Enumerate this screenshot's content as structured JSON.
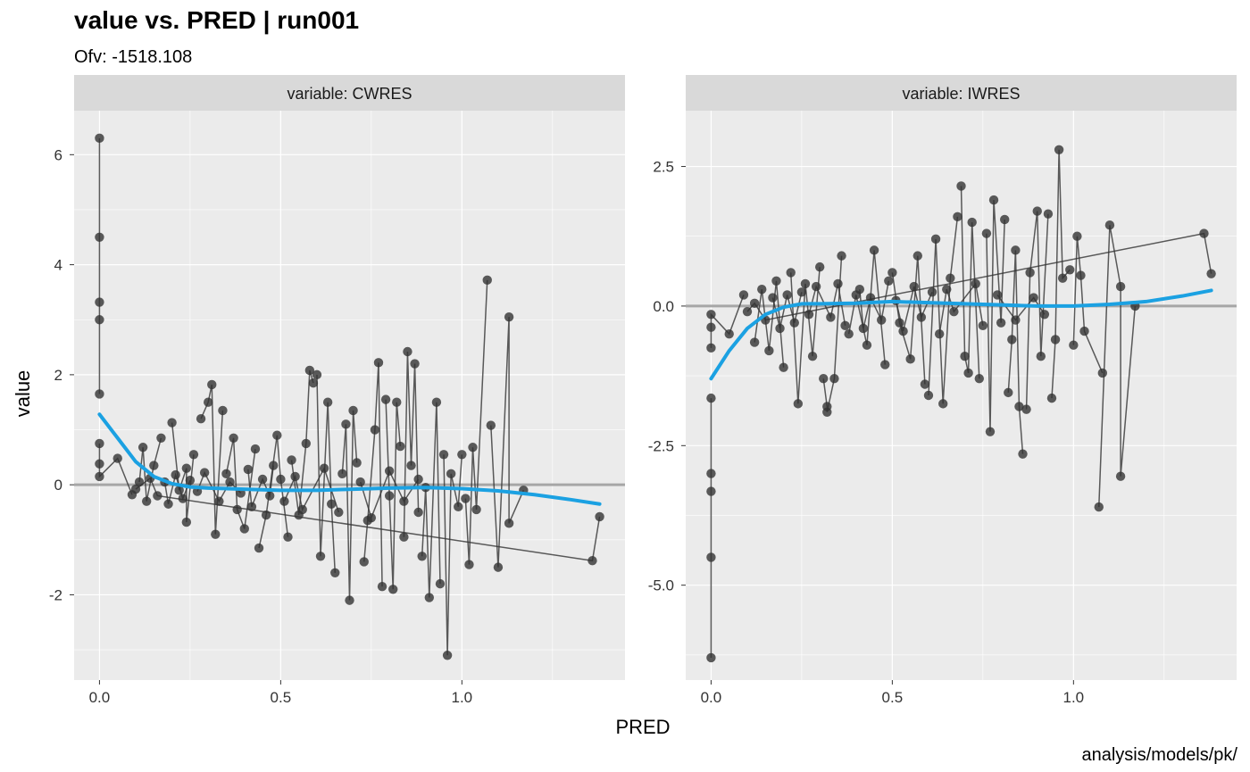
{
  "title": "value vs. PRED | run001",
  "subtitle": "Ofv: -1518.108",
  "caption": "analysis/models/pk/",
  "colors": {
    "panel_bg": "#ebebeb",
    "strip_bg": "#d9d9d9",
    "grid": "#ffffff",
    "points": "#333333",
    "lines": "#333333",
    "smooth": "#1ba1e2",
    "reference": "#a6a6a6"
  },
  "chart_data": [
    {
      "type": "scatter",
      "facet": "variable: CWRES",
      "xlabel": "PRED",
      "ylabel": "value",
      "xlim": [
        -0.07,
        1.45
      ],
      "ylim": [
        -3.55,
        6.8
      ],
      "xticks": [
        "0.0",
        "0.5",
        "1.0"
      ],
      "xtick_values": [
        0,
        0.5,
        1.0
      ],
      "yticks": [
        "-2",
        "0",
        "2",
        "4",
        "6"
      ],
      "ytick_values": [
        -2,
        0,
        2,
        4,
        6
      ],
      "reference_line": 0,
      "grid": true,
      "points": [
        [
          0.0,
          6.3
        ],
        [
          0.0,
          4.5
        ],
        [
          0.0,
          3.32
        ],
        [
          0.0,
          3.0
        ],
        [
          0.0,
          1.65
        ],
        [
          0.0,
          0.75
        ],
        [
          0.0,
          0.38
        ],
        [
          0.0,
          0.15
        ],
        [
          0.05,
          0.48
        ],
        [
          0.09,
          -0.18
        ],
        [
          0.11,
          0.05
        ],
        [
          0.12,
          0.68
        ],
        [
          0.13,
          -0.3
        ],
        [
          0.15,
          0.35
        ],
        [
          0.17,
          0.85
        ],
        [
          0.2,
          1.13
        ],
        [
          0.22,
          -0.1
        ],
        [
          0.24,
          0.3
        ],
        [
          0.24,
          -0.68
        ],
        [
          0.26,
          0.55
        ],
        [
          0.28,
          1.2
        ],
        [
          0.3,
          1.5
        ],
        [
          0.31,
          1.82
        ],
        [
          0.32,
          -0.9
        ],
        [
          0.34,
          1.35
        ],
        [
          0.35,
          0.2
        ],
        [
          0.37,
          0.85
        ],
        [
          0.38,
          -0.45
        ],
        [
          0.4,
          -0.8
        ],
        [
          0.43,
          0.65
        ],
        [
          0.44,
          -1.15
        ],
        [
          0.46,
          -0.55
        ],
        [
          0.49,
          0.9
        ],
        [
          0.5,
          0.1
        ],
        [
          0.52,
          -0.95
        ],
        [
          0.53,
          0.45
        ],
        [
          0.55,
          -0.55
        ],
        [
          0.57,
          0.75
        ],
        [
          0.58,
          2.08
        ],
        [
          0.59,
          1.85
        ],
        [
          0.6,
          2.0
        ],
        [
          0.61,
          -1.3
        ],
        [
          0.63,
          1.5
        ],
        [
          0.64,
          -0.35
        ],
        [
          0.65,
          -1.6
        ],
        [
          0.67,
          0.2
        ],
        [
          0.68,
          1.1
        ],
        [
          0.69,
          -2.1
        ],
        [
          0.7,
          1.35
        ],
        [
          0.71,
          0.4
        ],
        [
          0.73,
          -1.4
        ],
        [
          0.74,
          -0.65
        ],
        [
          0.76,
          1.0
        ],
        [
          0.77,
          2.22
        ],
        [
          0.78,
          -1.85
        ],
        [
          0.79,
          1.55
        ],
        [
          0.8,
          -0.2
        ],
        [
          0.81,
          -1.9
        ],
        [
          0.82,
          1.5
        ],
        [
          0.83,
          0.7
        ],
        [
          0.84,
          -0.95
        ],
        [
          0.85,
          2.42
        ],
        [
          0.86,
          0.35
        ],
        [
          0.87,
          2.2
        ],
        [
          0.88,
          -0.5
        ],
        [
          0.89,
          -1.3
        ],
        [
          0.9,
          -0.05
        ],
        [
          0.91,
          -2.05
        ],
        [
          0.93,
          1.5
        ],
        [
          0.94,
          -1.8
        ],
        [
          0.95,
          0.55
        ],
        [
          0.96,
          -3.1
        ],
        [
          0.97,
          0.2
        ],
        [
          0.99,
          -0.4
        ],
        [
          1.0,
          0.55
        ],
        [
          1.01,
          -0.25
        ],
        [
          1.02,
          -1.45
        ],
        [
          1.03,
          0.68
        ],
        [
          1.04,
          -0.45
        ],
        [
          1.07,
          3.72
        ],
        [
          1.08,
          1.08
        ],
        [
          1.1,
          -1.5
        ],
        [
          1.13,
          3.05
        ],
        [
          1.13,
          -0.7
        ],
        [
          1.17,
          -0.1
        ],
        [
          1.36,
          -1.38
        ],
        [
          1.38,
          -0.58
        ],
        [
          0.1,
          -0.08
        ],
        [
          0.14,
          0.12
        ],
        [
          0.16,
          -0.2
        ],
        [
          0.18,
          0.05
        ],
        [
          0.19,
          -0.35
        ],
        [
          0.21,
          0.18
        ],
        [
          0.23,
          -0.25
        ],
        [
          0.25,
          0.08
        ],
        [
          0.27,
          -0.12
        ],
        [
          0.29,
          0.22
        ],
        [
          0.33,
          -0.3
        ],
        [
          0.36,
          0.05
        ],
        [
          0.39,
          -0.15
        ],
        [
          0.41,
          0.28
        ],
        [
          0.42,
          -0.4
        ],
        [
          0.45,
          0.1
        ],
        [
          0.47,
          -0.2
        ],
        [
          0.48,
          0.35
        ],
        [
          0.51,
          -0.3
        ],
        [
          0.54,
          0.15
        ],
        [
          0.56,
          -0.45
        ],
        [
          0.62,
          0.3
        ],
        [
          0.66,
          -0.5
        ],
        [
          0.72,
          0.05
        ],
        [
          0.75,
          -0.6
        ],
        [
          0.8,
          0.25
        ],
        [
          0.84,
          -0.3
        ],
        [
          0.88,
          0.1
        ]
      ],
      "smooth": {
        "x": [
          0.0,
          0.05,
          0.1,
          0.15,
          0.2,
          0.25,
          0.3,
          0.4,
          0.5,
          0.6,
          0.7,
          0.8,
          0.9,
          1.0,
          1.1,
          1.2,
          1.3,
          1.38
        ],
        "y": [
          1.28,
          0.85,
          0.42,
          0.15,
          0.02,
          -0.04,
          -0.06,
          -0.08,
          -0.1,
          -0.1,
          -0.08,
          -0.06,
          -0.05,
          -0.07,
          -0.11,
          -0.18,
          -0.27,
          -0.35
        ]
      }
    },
    {
      "type": "scatter",
      "facet": "variable: IWRES",
      "xlabel": "PRED",
      "ylabel": "value",
      "xlim": [
        -0.07,
        1.45
      ],
      "ylim": [
        -6.7,
        3.5
      ],
      "xticks": [
        "0.0",
        "0.5",
        "1.0"
      ],
      "xtick_values": [
        0,
        0.5,
        1.0
      ],
      "yticks": [
        "-5.0",
        "-2.5",
        "0.0",
        "2.5"
      ],
      "ytick_values": [
        -5,
        -2.5,
        0,
        2.5
      ],
      "reference_line": 0,
      "grid": true,
      "points": [
        [
          0.0,
          -6.3
        ],
        [
          0.0,
          -4.5
        ],
        [
          0.0,
          -3.32
        ],
        [
          0.0,
          -3.0
        ],
        [
          0.0,
          -1.65
        ],
        [
          0.0,
          -0.75
        ],
        [
          0.0,
          -0.38
        ],
        [
          0.0,
          -0.15
        ],
        [
          0.05,
          -0.5
        ],
        [
          0.09,
          0.2
        ],
        [
          0.12,
          -0.65
        ],
        [
          0.14,
          0.3
        ],
        [
          0.16,
          -0.8
        ],
        [
          0.18,
          0.45
        ],
        [
          0.2,
          -1.1
        ],
        [
          0.22,
          0.6
        ],
        [
          0.24,
          -1.75
        ],
        [
          0.26,
          0.4
        ],
        [
          0.28,
          -0.9
        ],
        [
          0.3,
          0.7
        ],
        [
          0.31,
          -1.3
        ],
        [
          0.32,
          -1.8
        ],
        [
          0.32,
          -1.9
        ],
        [
          0.34,
          -1.3
        ],
        [
          0.36,
          0.9
        ],
        [
          0.38,
          -0.5
        ],
        [
          0.4,
          0.2
        ],
        [
          0.43,
          -0.7
        ],
        [
          0.45,
          1.0
        ],
        [
          0.48,
          -1.05
        ],
        [
          0.5,
          0.6
        ],
        [
          0.52,
          -0.3
        ],
        [
          0.55,
          -0.95
        ],
        [
          0.57,
          0.9
        ],
        [
          0.59,
          -1.4
        ],
        [
          0.6,
          -1.6
        ],
        [
          0.62,
          1.2
        ],
        [
          0.64,
          -1.75
        ],
        [
          0.66,
          0.5
        ],
        [
          0.68,
          1.6
        ],
        [
          0.69,
          2.15
        ],
        [
          0.7,
          -0.9
        ],
        [
          0.71,
          -1.2
        ],
        [
          0.72,
          1.5
        ],
        [
          0.74,
          -1.3
        ],
        [
          0.76,
          1.3
        ],
        [
          0.77,
          -2.25
        ],
        [
          0.78,
          1.9
        ],
        [
          0.8,
          -0.3
        ],
        [
          0.81,
          1.55
        ],
        [
          0.82,
          -1.55
        ],
        [
          0.83,
          -0.6
        ],
        [
          0.84,
          1.0
        ],
        [
          0.85,
          -1.8
        ],
        [
          0.86,
          -2.65
        ],
        [
          0.87,
          -1.85
        ],
        [
          0.88,
          0.6
        ],
        [
          0.9,
          1.7
        ],
        [
          0.91,
          -0.9
        ],
        [
          0.93,
          1.65
        ],
        [
          0.94,
          -1.65
        ],
        [
          0.95,
          -0.6
        ],
        [
          0.96,
          2.8
        ],
        [
          0.97,
          0.5
        ],
        [
          0.99,
          0.65
        ],
        [
          1.0,
          -0.7
        ],
        [
          1.01,
          1.25
        ],
        [
          1.02,
          0.55
        ],
        [
          1.03,
          -0.45
        ],
        [
          1.08,
          -1.2
        ],
        [
          1.07,
          -3.6
        ],
        [
          1.1,
          1.45
        ],
        [
          1.13,
          0.35
        ],
        [
          1.13,
          -3.05
        ],
        [
          1.17,
          0.0
        ],
        [
          1.36,
          1.3
        ],
        [
          1.38,
          0.58
        ],
        [
          0.1,
          -0.1
        ],
        [
          0.12,
          0.05
        ],
        [
          0.15,
          -0.25
        ],
        [
          0.17,
          0.15
        ],
        [
          0.19,
          -0.4
        ],
        [
          0.21,
          0.2
        ],
        [
          0.23,
          -0.3
        ],
        [
          0.25,
          0.25
        ],
        [
          0.27,
          -0.15
        ],
        [
          0.29,
          0.35
        ],
        [
          0.33,
          -0.2
        ],
        [
          0.35,
          0.4
        ],
        [
          0.37,
          -0.35
        ],
        [
          0.41,
          0.3
        ],
        [
          0.42,
          -0.4
        ],
        [
          0.44,
          0.15
        ],
        [
          0.47,
          -0.25
        ],
        [
          0.49,
          0.45
        ],
        [
          0.51,
          0.1
        ],
        [
          0.53,
          -0.45
        ],
        [
          0.56,
          0.35
        ],
        [
          0.58,
          -0.2
        ],
        [
          0.61,
          0.25
        ],
        [
          0.63,
          -0.5
        ],
        [
          0.65,
          0.3
        ],
        [
          0.67,
          -0.1
        ],
        [
          0.73,
          0.4
        ],
        [
          0.75,
          -0.35
        ],
        [
          0.79,
          0.2
        ],
        [
          0.84,
          -0.25
        ],
        [
          0.89,
          0.15
        ],
        [
          0.92,
          -0.15
        ]
      ],
      "smooth": {
        "x": [
          0.0,
          0.05,
          0.1,
          0.15,
          0.2,
          0.25,
          0.3,
          0.4,
          0.5,
          0.6,
          0.7,
          0.8,
          0.9,
          1.0,
          1.1,
          1.2,
          1.3,
          1.38
        ],
        "y": [
          -1.3,
          -0.8,
          -0.4,
          -0.15,
          -0.02,
          0.04,
          0.04,
          0.05,
          0.08,
          0.06,
          0.04,
          0.02,
          0.0,
          0.0,
          0.03,
          0.08,
          0.18,
          0.28
        ]
      }
    }
  ]
}
